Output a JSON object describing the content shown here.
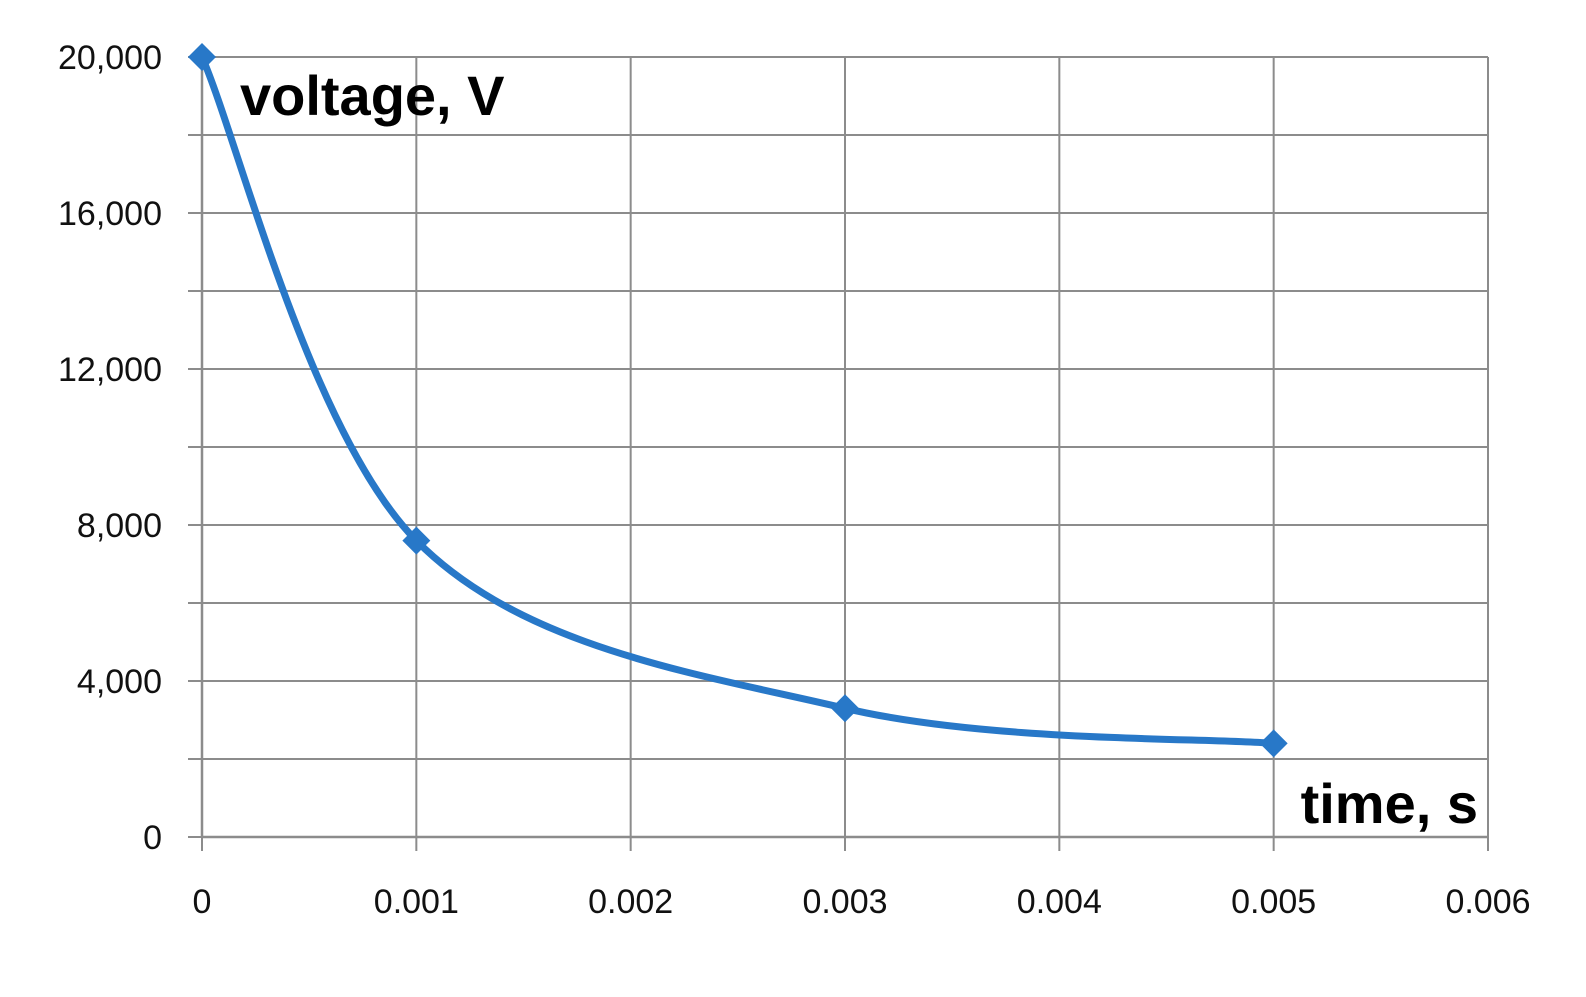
{
  "chart_data": {
    "type": "line",
    "title": "",
    "xlabel": "time, s",
    "ylabel": "voltage, V",
    "xlim": [
      0,
      0.006
    ],
    "ylim": [
      0,
      20000
    ],
    "x_ticks": [
      0,
      0.001,
      0.002,
      0.003,
      0.004,
      0.005,
      0.006
    ],
    "x_tick_labels": [
      "0",
      "0.001",
      "0.002",
      "0.003",
      "0.004",
      "0.005",
      "0.006"
    ],
    "y_ticks": [
      0,
      4000,
      8000,
      12000,
      16000,
      20000
    ],
    "y_tick_labels": [
      "0",
      "4,000",
      "8,000",
      "12,000",
      "16,000",
      "20,000"
    ],
    "y_minor_step": 2000,
    "grid": true,
    "legend": "none",
    "series": [
      {
        "x": [
          0,
          0.001,
          0.003,
          0.005
        ],
        "y": [
          20000,
          7600,
          3300,
          2400
        ],
        "color": "#2878c8",
        "marker": "diamond",
        "smooth": true
      }
    ]
  }
}
